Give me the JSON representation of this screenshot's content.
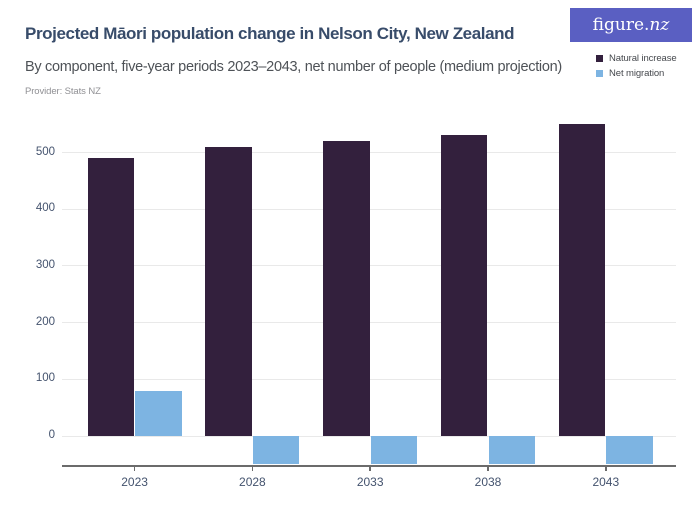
{
  "header": {
    "title": "Projected Māori population change in Nelson City, New Zealand",
    "subtitle": "By component, five-year periods 2023–2043, net number of people (medium projection)",
    "provider": "Provider: Stats NZ",
    "logo": {
      "text_main": "figure.",
      "text_accent": "nz",
      "background_color": "#5a5fc2",
      "text_color": "#ffffff"
    }
  },
  "chart_data": {
    "type": "bar",
    "title": "Projected Māori population change in Nelson City, New Zealand",
    "subtitle": "By component, five-year periods 2023–2043, net number of people (medium projection)",
    "xlabel": "",
    "ylabel": "",
    "categories": [
      "2023",
      "2028",
      "2033",
      "2038",
      "2043"
    ],
    "series": [
      {
        "name": "Natural increase",
        "color": "#33203d",
        "values": [
          490,
          510,
          520,
          530,
          550
        ]
      },
      {
        "name": "Net migration",
        "color": "#7db4e2",
        "values": [
          80,
          -50,
          -50,
          -50,
          -50
        ]
      }
    ],
    "yticks": [
      0,
      100,
      200,
      300,
      400,
      500
    ],
    "ylim": [
      -51,
      565
    ],
    "grid": true,
    "legend_position": "top-right"
  },
  "colors": {
    "title": "#384c6a",
    "subtitle": "#4e5257",
    "provider": "#909094",
    "axis_labels": "#44536e",
    "gridline": "#e9e9e9",
    "axis_line": "#6b6b6b",
    "background": "#ffffff"
  }
}
